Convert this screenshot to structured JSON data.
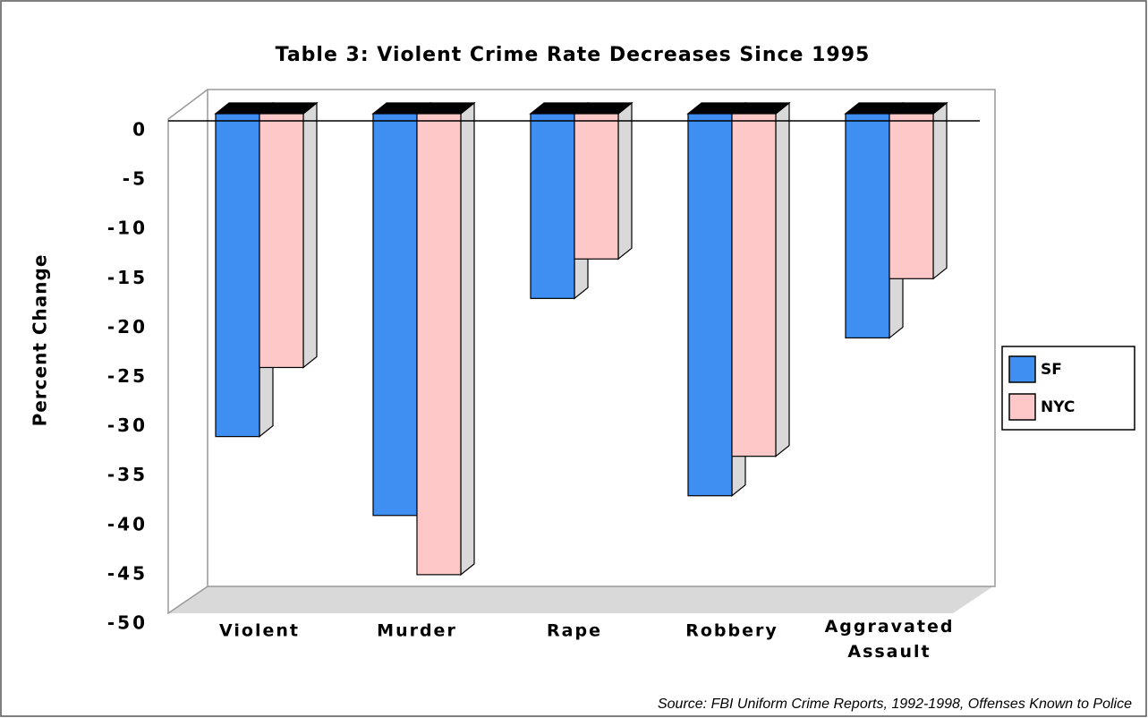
{
  "chart_data": {
    "type": "bar3d",
    "title": "Table 3:  Violent Crime Rate Decreases Since 1995",
    "y_label": "Percent Change",
    "source": "Source:  FBI Uniform Crime Reports, 1992-1998, Offenses Known to Police",
    "categories": [
      "Violent",
      "Murder",
      "Rape",
      "Robbery",
      "Aggravated Assault"
    ],
    "series": [
      {
        "name": "SF",
        "color": "#3f8ff2",
        "values": [
          -31,
          -39,
          -17,
          -37,
          -21
        ]
      },
      {
        "name": "NYC",
        "color": "#ffc8c8",
        "values": [
          -24,
          -45,
          -13,
          -33,
          -15
        ]
      }
    ],
    "ylim": [
      -50,
      0
    ],
    "yticks": [
      0,
      -5,
      -10,
      -15,
      -20,
      -25,
      -30,
      -35,
      -40,
      -45,
      -50
    ],
    "legend": "right"
  }
}
